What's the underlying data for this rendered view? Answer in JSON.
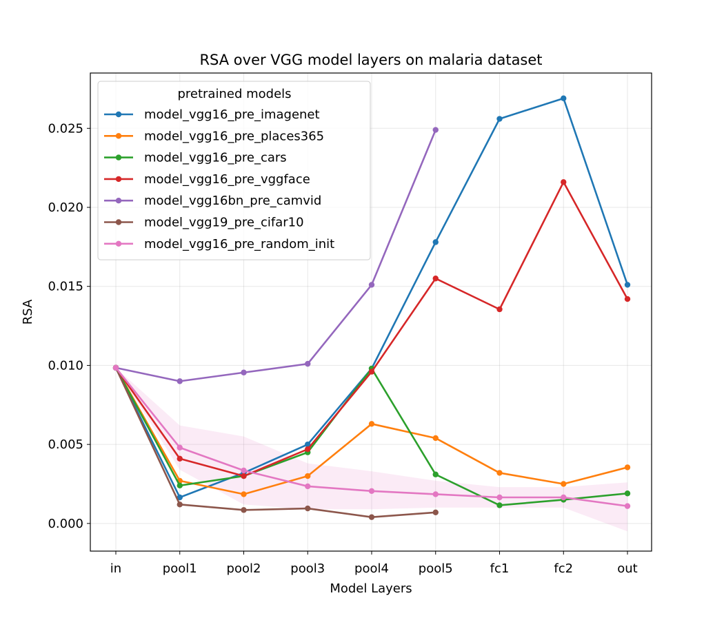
{
  "chart_data": {
    "type": "line",
    "title": "RSA over VGG model layers on malaria dataset",
    "xlabel": "Model Layers",
    "ylabel": "RSA",
    "categories": [
      "in",
      "pool1",
      "pool2",
      "pool3",
      "pool4",
      "pool5",
      "fc1",
      "fc2",
      "out"
    ],
    "ylim": [
      -0.00175,
      0.0285
    ],
    "yticks": [
      0.0,
      0.005,
      0.01,
      0.015,
      0.02,
      0.025
    ],
    "ytick_labels": [
      "0.000",
      "0.005",
      "0.010",
      "0.015",
      "0.020",
      "0.025"
    ],
    "grid": true,
    "legend": {
      "title": "pretrained models",
      "placement": "top-left"
    },
    "series": [
      {
        "name": "model_vgg16_pre_imagenet",
        "color": "#1f77b4",
        "values": [
          0.00985,
          0.00165,
          0.0032,
          0.005,
          0.0098,
          0.0178,
          0.0256,
          0.0269,
          0.0151
        ]
      },
      {
        "name": "model_vgg16_pre_places365",
        "color": "#ff7f0e",
        "values": [
          0.00985,
          0.0027,
          0.00185,
          0.003,
          0.0063,
          0.0054,
          0.0032,
          0.0025,
          0.00355
        ]
      },
      {
        "name": "model_vgg16_pre_cars",
        "color": "#2ca02c",
        "values": [
          0.00985,
          0.0024,
          0.003,
          0.0045,
          0.0098,
          0.0031,
          0.00115,
          0.0015,
          0.0019
        ]
      },
      {
        "name": "model_vgg16_pre_vggface",
        "color": "#d62728",
        "values": [
          0.00985,
          0.0041,
          0.003,
          0.0047,
          0.0096,
          0.0155,
          0.01355,
          0.0216,
          0.0142
        ]
      },
      {
        "name": "model_vgg16bn_pre_camvid",
        "color": "#9467bd",
        "values": [
          0.00985,
          0.009,
          0.00955,
          0.0101,
          0.0151,
          0.0249,
          null,
          null,
          null
        ]
      },
      {
        "name": "model_vgg19_pre_cifar10",
        "color": "#8c564b",
        "values": [
          0.00985,
          0.0012,
          0.00085,
          0.00095,
          0.0004,
          0.0007,
          null,
          null,
          null
        ]
      },
      {
        "name": "model_vgg16_pre_random_init",
        "color": "#e377c2",
        "values": [
          0.00985,
          0.0048,
          0.00335,
          0.00235,
          0.00205,
          0.00185,
          0.00165,
          0.00165,
          0.0011
        ],
        "band_low": [
          0.00985,
          0.0034,
          0.0012,
          0.0009,
          0.0009,
          0.001,
          0.001,
          0.001,
          -0.0005
        ],
        "band_high": [
          0.00985,
          0.0062,
          0.0055,
          0.0038,
          0.0033,
          0.0027,
          0.0023,
          0.0023,
          0.0026
        ]
      }
    ]
  }
}
